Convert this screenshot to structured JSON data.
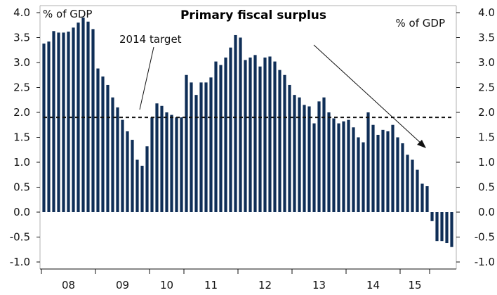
{
  "chart_data": {
    "type": "bar",
    "title": "Primary fiscal surplus",
    "ylabel_left": "% of GDP",
    "ylabel_right": "% of GDP",
    "ylim": [
      -1.0,
      4.0
    ],
    "yticks": [
      "4.0",
      "3.5",
      "3.0",
      "2.5",
      "2.0",
      "1.5",
      "1.0",
      "0.5",
      "0.0",
      "-0.5",
      "-1.0"
    ],
    "ytick_values": [
      4.0,
      3.5,
      3.0,
      2.5,
      2.0,
      1.5,
      1.0,
      0.5,
      0.0,
      -0.5,
      -1.0
    ],
    "xticks": [
      "08",
      "09",
      "10",
      "11",
      "12",
      "13",
      "14",
      "15"
    ],
    "bar_color": "#0f2e57",
    "target": {
      "label": "2014 target",
      "value": 1.9
    },
    "annotation_arrow": true,
    "series": [
      {
        "values": [
          3.38,
          3.42,
          3.63,
          3.6,
          3.6,
          3.62,
          3.7,
          3.8,
          3.9,
          3.82,
          3.67,
          2.88,
          2.72,
          2.55,
          2.3,
          2.1,
          1.85,
          1.62,
          1.45,
          1.05,
          0.93,
          1.32,
          1.9,
          2.18,
          2.13,
          2.0,
          1.95,
          1.9,
          1.9,
          2.75,
          2.6,
          2.35,
          2.6,
          2.6,
          2.7,
          3.02,
          2.95,
          3.1,
          3.3,
          3.55,
          3.5,
          3.05,
          3.1,
          3.15,
          2.92,
          3.1,
          3.12,
          3.02,
          2.85,
          2.75,
          2.55,
          2.35,
          2.3,
          2.15,
          2.12,
          1.78,
          2.22,
          2.3,
          2.0,
          1.88,
          1.78,
          1.82,
          1.85,
          1.7,
          1.5,
          1.4,
          2.0,
          1.75,
          1.55,
          1.65,
          1.62,
          1.75,
          1.5,
          1.38,
          1.15,
          1.05,
          0.85,
          0.57,
          0.52,
          -0.18,
          -0.58,
          -0.58,
          -0.62,
          -0.7
        ]
      }
    ]
  }
}
